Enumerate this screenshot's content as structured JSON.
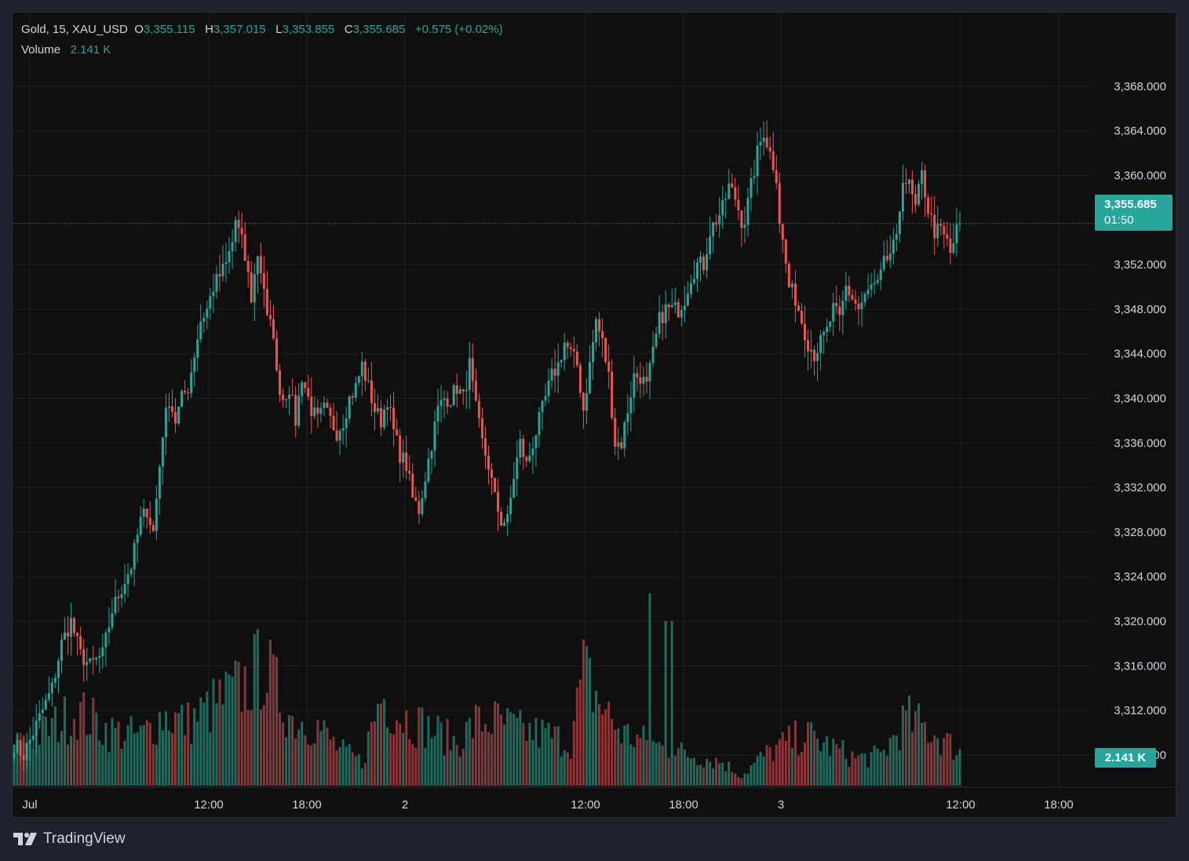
{
  "header": {
    "symbol": "Gold, 15, XAU_USD",
    "open_label": "O",
    "open": "3,355.115",
    "high_label": "H",
    "high": "3,357.015",
    "low_label": "L",
    "low": "3,353.855",
    "close_label": "C",
    "close": "3,355.685",
    "change": "+0.575 (+0.02%)",
    "volume_label": "Volume",
    "volume": "2.141 K"
  },
  "price_badge": {
    "price": "3,355.685",
    "countdown": "01:50"
  },
  "volume_badge": "2.141 K",
  "brand": "TradingView",
  "colors": {
    "up": "#26a69a",
    "down": "#ef5350",
    "up_volume": "#1f6b5e",
    "down_volume": "#8a3538",
    "background": "#0f0f0f",
    "grid": "#1c1f24",
    "text": "#d1d4dc"
  },
  "chart_data": {
    "type": "candlestick",
    "timeframe": "15",
    "y_tick_labels": [
      "3,368.000",
      "3,364.000",
      "3,360.000",
      "3,352.000",
      "3,348.000",
      "3,344.000",
      "3,340.000",
      "3,336.000",
      "3,332.000",
      "3,328.000",
      "3,324.000",
      "3,320.000",
      "3,316.000",
      "3,312.000",
      "3,308.000"
    ],
    "x_tick_labels": [
      "Jul",
      "12:00",
      "18:00",
      "2",
      "12:00",
      "18:00",
      "3",
      "12:00",
      "18:00"
    ],
    "ylim": [
      3306.8,
      3370.6
    ],
    "last_price": 3355.685,
    "anchors": [
      [
        0,
        3309
      ],
      [
        3,
        3308
      ],
      [
        6,
        3310
      ],
      [
        9,
        3312
      ],
      [
        12,
        3314
      ],
      [
        15,
        3318
      ],
      [
        18,
        3320
      ],
      [
        21,
        3317
      ],
      [
        24,
        3316
      ],
      [
        28,
        3317
      ],
      [
        31,
        3321
      ],
      [
        34,
        3323
      ],
      [
        37,
        3325
      ],
      [
        40,
        3329
      ],
      [
        42,
        3330
      ],
      [
        44,
        3328
      ],
      [
        45,
        3331
      ],
      [
        47,
        3337
      ],
      [
        49,
        3340
      ],
      [
        51,
        3338
      ],
      [
        53,
        3340
      ],
      [
        55,
        3341
      ],
      [
        57,
        3344
      ],
      [
        59,
        3347
      ],
      [
        61,
        3348
      ],
      [
        63,
        3350
      ],
      [
        65,
        3351
      ],
      [
        67,
        3352
      ],
      [
        69,
        3354
      ],
      [
        70,
        3356
      ],
      [
        72,
        3354
      ],
      [
        74,
        3351
      ],
      [
        75,
        3349
      ],
      [
        77,
        3353
      ],
      [
        79,
        3350
      ],
      [
        80,
        3347
      ],
      [
        82,
        3346
      ],
      [
        83,
        3342
      ],
      [
        85,
        3340
      ],
      [
        87,
        3341
      ],
      [
        89,
        3338
      ],
      [
        91,
        3342
      ],
      [
        92,
        3341
      ],
      [
        94,
        3339
      ],
      [
        96,
        3338
      ],
      [
        98,
        3339
      ],
      [
        100,
        3338
      ],
      [
        102,
        3337
      ],
      [
        104,
        3338
      ],
      [
        106,
        3340
      ],
      [
        108,
        3341
      ],
      [
        110,
        3343
      ],
      [
        112,
        3341
      ],
      [
        114,
        3339
      ],
      [
        116,
        3338
      ],
      [
        118,
        3340
      ],
      [
        120,
        3337
      ],
      [
        122,
        3335
      ],
      [
        124,
        3334
      ],
      [
        126,
        3331
      ],
      [
        128,
        3330
      ],
      [
        130,
        3333
      ],
      [
        132,
        3336
      ],
      [
        134,
        3339
      ],
      [
        136,
        3340
      ],
      [
        138,
        3340
      ],
      [
        140,
        3341
      ],
      [
        142,
        3340
      ],
      [
        144,
        3343
      ],
      [
        146,
        3339
      ],
      [
        148,
        3336
      ],
      [
        150,
        3334
      ],
      [
        152,
        3331
      ],
      [
        154,
        3329
      ],
      [
        156,
        3329
      ],
      [
        158,
        3333
      ],
      [
        160,
        3336
      ],
      [
        162,
        3334
      ],
      [
        164,
        3336
      ],
      [
        166,
        3338
      ],
      [
        168,
        3340
      ],
      [
        170,
        3342
      ],
      [
        172,
        3343
      ],
      [
        174,
        3345
      ],
      [
        176,
        3344
      ],
      [
        178,
        3343
      ],
      [
        180,
        3339
      ],
      [
        182,
        3343
      ],
      [
        184,
        3347
      ],
      [
        186,
        3345
      ],
      [
        188,
        3342
      ],
      [
        190,
        3336
      ],
      [
        192,
        3336
      ],
      [
        194,
        3339
      ],
      [
        196,
        3342
      ],
      [
        198,
        3342
      ],
      [
        200,
        3341
      ],
      [
        202,
        3344
      ],
      [
        204,
        3347
      ],
      [
        206,
        3348
      ],
      [
        208,
        3348
      ],
      [
        210,
        3348
      ],
      [
        212,
        3349
      ],
      [
        214,
        3351
      ],
      [
        216,
        3352
      ],
      [
        218,
        3352
      ],
      [
        220,
        3355
      ],
      [
        222,
        3356
      ],
      [
        224,
        3357
      ],
      [
        226,
        3359
      ],
      [
        228,
        3358
      ],
      [
        230,
        3356
      ],
      [
        231,
        3356
      ],
      [
        233,
        3359
      ],
      [
        235,
        3362
      ],
      [
        237,
        3364
      ],
      [
        239,
        3362
      ],
      [
        241,
        3360
      ],
      [
        242,
        3356
      ],
      [
        243,
        3354
      ],
      [
        245,
        3350
      ],
      [
        247,
        3349
      ],
      [
        249,
        3347
      ],
      [
        251,
        3345
      ],
      [
        253,
        3344
      ],
      [
        255,
        3345
      ],
      [
        257,
        3346
      ],
      [
        259,
        3348
      ],
      [
        261,
        3347
      ],
      [
        263,
        3350
      ],
      [
        265,
        3349
      ],
      [
        267,
        3348
      ],
      [
        269,
        3349
      ],
      [
        271,
        3350
      ],
      [
        273,
        3350
      ],
      [
        275,
        3352
      ],
      [
        277,
        3353
      ],
      [
        279,
        3354
      ],
      [
        281,
        3360
      ],
      [
        283,
        3359
      ],
      [
        285,
        3357
      ],
      [
        287,
        3360
      ],
      [
        289,
        3357
      ],
      [
        291,
        3355
      ],
      [
        293,
        3355
      ],
      [
        295,
        3354
      ],
      [
        296,
        3353
      ],
      [
        298,
        3355
      ],
      [
        299,
        3355.685
      ]
    ],
    "volume_levels": [
      [
        0,
        0.2
      ],
      [
        10,
        0.28
      ],
      [
        20,
        0.38
      ],
      [
        30,
        0.28
      ],
      [
        40,
        0.25
      ],
      [
        47,
        0.36
      ],
      [
        55,
        0.32
      ],
      [
        65,
        0.43
      ],
      [
        72,
        0.5
      ],
      [
        79,
        0.62
      ],
      [
        83,
        0.48
      ],
      [
        88,
        0.34
      ],
      [
        95,
        0.32
      ],
      [
        103,
        0.18
      ],
      [
        110,
        0.12
      ],
      [
        116,
        0.46
      ],
      [
        122,
        0.36
      ],
      [
        130,
        0.3
      ],
      [
        140,
        0.22
      ],
      [
        146,
        0.32
      ],
      [
        152,
        0.33
      ],
      [
        160,
        0.28
      ],
      [
        168,
        0.26
      ],
      [
        176,
        0.22
      ],
      [
        180,
        0.58
      ],
      [
        186,
        0.4
      ],
      [
        192,
        0.27
      ],
      [
        200,
        0.22
      ],
      [
        208,
        0.18
      ],
      [
        216,
        0.15
      ],
      [
        224,
        0.12
      ],
      [
        230,
        0.05
      ],
      [
        236,
        0.14
      ],
      [
        242,
        0.2
      ],
      [
        250,
        0.26
      ],
      [
        258,
        0.2
      ],
      [
        266,
        0.14
      ],
      [
        274,
        0.15
      ],
      [
        282,
        0.34
      ],
      [
        290,
        0.28
      ],
      [
        299,
        0.17
      ]
    ]
  }
}
